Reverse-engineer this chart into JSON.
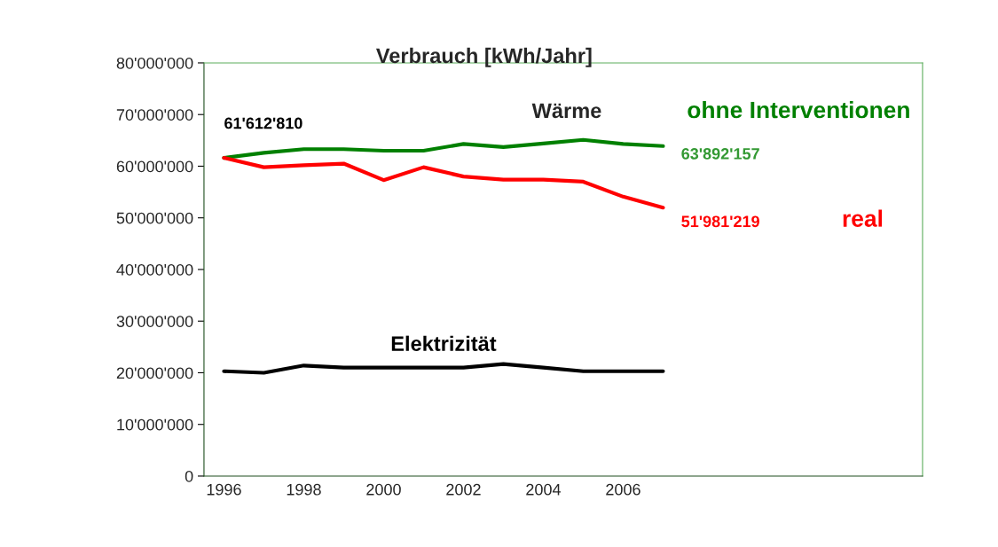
{
  "chart_data": {
    "type": "line",
    "title": "Verbrauch [kWh/Jahr]",
    "categories": [
      "1996",
      null,
      "1998",
      null,
      "2000",
      null,
      "2002",
      null,
      "2004",
      null,
      "2006",
      null,
      null,
      null,
      null,
      null,
      null,
      null
    ],
    "series": [
      {
        "name": "ohne Interventionen",
        "color": "#008000",
        "values": [
          61612810,
          62600000,
          63300000,
          63300000,
          63000000,
          63000000,
          64300000,
          63700000,
          64400000,
          65100000,
          64300000,
          63892157,
          null,
          null,
          null,
          null,
          null,
          null
        ]
      },
      {
        "name": "real",
        "color": "#ff0000",
        "values": [
          61612810,
          59800000,
          60200000,
          60500000,
          57300000,
          59800000,
          58000000,
          57400000,
          57400000,
          57000000,
          54100000,
          51981219,
          null,
          null,
          null,
          null,
          null,
          null
        ]
      },
      {
        "name": "Elektrizität",
        "color": "#000000",
        "values": [
          20300000,
          20000000,
          21400000,
          21000000,
          21000000,
          21000000,
          21000000,
          21700000,
          21000000,
          20300000,
          20300000,
          20300000,
          null,
          null,
          null,
          null,
          null,
          null
        ]
      }
    ],
    "annotations": [
      "Wärme",
      {
        "text": "61'612'810",
        "x": "1996",
        "y": 61612810
      },
      "63'892'157",
      "51'981'219"
    ],
    "ylim": [
      0,
      80000000
    ],
    "yticks": [
      {
        "value": 0,
        "label": "0"
      },
      {
        "value": 10000000,
        "label": "10'000'000"
      },
      {
        "value": 20000000,
        "label": "20'000'000"
      },
      {
        "value": 30000000,
        "label": "30'000'000"
      },
      {
        "value": 40000000,
        "label": "40'000'000"
      },
      {
        "value": 50000000,
        "label": "50'000'000"
      },
      {
        "value": 60000000,
        "label": "60'000'000"
      },
      {
        "value": 70000000,
        "label": "70'000'000"
      },
      {
        "value": 80000000,
        "label": "80'000'000"
      }
    ],
    "grid": false,
    "legend": false
  }
}
